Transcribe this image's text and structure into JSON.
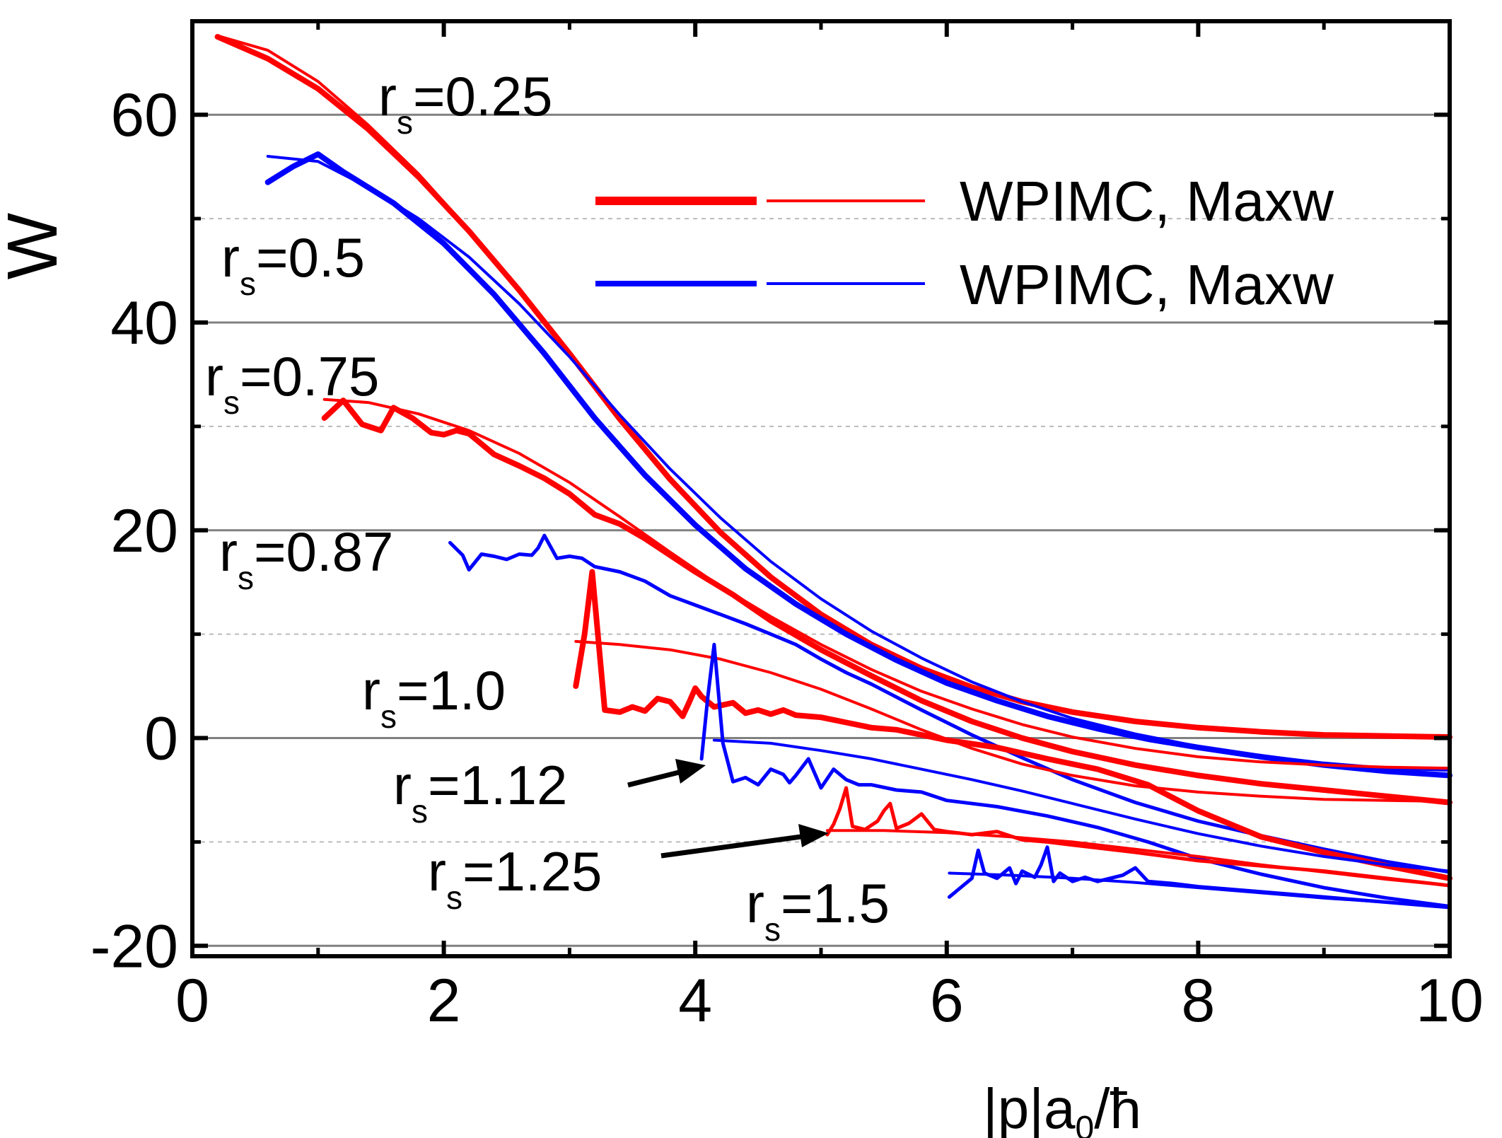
{
  "chart_data": {
    "type": "line",
    "xlabel": "|p|a",
    "xlabel_sub": "0",
    "xlabel_tail": "/ħ",
    "ylabel": "W",
    "xlim": [
      0,
      10
    ],
    "ylim": [
      -21,
      69
    ],
    "x_ticks": [
      0,
      2,
      4,
      6,
      8,
      10
    ],
    "y_ticks": [
      -20,
      0,
      20,
      40,
      60
    ],
    "y_ticks_minor": [
      -10,
      10,
      30,
      50
    ],
    "grid": true,
    "colors": {
      "red": "#ff0000",
      "blue": "#0000ff",
      "grid_major": "#808080",
      "grid_minor": "#bbbbbb",
      "arrow": "#000000"
    },
    "legend": {
      "position": "top-right",
      "entries": [
        {
          "label": "WPIMC, Maxw",
          "color": "#ff0000"
        },
        {
          "label": "WPIMC, Maxw",
          "color": "#0000ff"
        }
      ]
    },
    "annotations": [
      {
        "main": "r",
        "sub": "s",
        "tail": "=0.25"
      },
      {
        "main": "r",
        "sub": "s",
        "tail": "=0.5"
      },
      {
        "main": "r",
        "sub": "s",
        "tail": "=0.75"
      },
      {
        "main": "r",
        "sub": "s",
        "tail": "=0.87"
      },
      {
        "main": "r",
        "sub": "s",
        "tail": "=1.0"
      },
      {
        "main": "r",
        "sub": "s",
        "tail": "=1.12"
      },
      {
        "main": "r",
        "sub": "s",
        "tail": "=1.25"
      },
      {
        "main": "r",
        "sub": "s",
        "tail": "=1.5"
      }
    ],
    "series": [
      {
        "kind": "WPIMC",
        "color": "#ff0000",
        "width": 8,
        "x": [
          0.2,
          0.6,
          1.0,
          1.4,
          1.8,
          2.2,
          2.6,
          3.0,
          3.4,
          3.8,
          4.2,
          4.6,
          5.0,
          5.4,
          5.8,
          6.2,
          6.6,
          7.0,
          7.5,
          8.0,
          8.5,
          9.0,
          9.5,
          10.0
        ],
        "y": [
          67.5,
          65.4,
          62.5,
          58.6,
          54.0,
          48.8,
          43.1,
          37.0,
          30.7,
          24.9,
          19.8,
          15.5,
          11.9,
          9.0,
          6.7,
          4.9,
          3.5,
          2.5,
          1.6,
          1.0,
          0.6,
          0.3,
          0.2,
          0.1
        ]
      },
      {
        "kind": "Maxw",
        "color": "#ff0000",
        "width": 4,
        "x": [
          0.2,
          0.6,
          1.0,
          1.4,
          1.8,
          2.2,
          2.6,
          3.0,
          3.4,
          3.8,
          4.2,
          4.6,
          5.0,
          5.4,
          5.8,
          6.2,
          6.6,
          7.0,
          7.5,
          8.0,
          8.5,
          9.0,
          9.5,
          10.0
        ],
        "y": [
          67.6,
          66.2,
          63.2,
          59.0,
          54.3,
          48.9,
          43.1,
          37.0,
          30.9,
          25.1,
          19.9,
          15.6,
          12.0,
          9.1,
          6.8,
          5.0,
          3.6,
          2.6,
          1.7,
          1.1,
          0.7,
          0.4,
          0.2,
          0.1
        ]
      },
      {
        "kind": "WPIMC",
        "color": "#0000ff",
        "width": 8,
        "x": [
          0.6,
          0.8,
          1.0,
          1.2,
          1.6,
          2.0,
          2.4,
          2.8,
          3.2,
          3.6,
          4.0,
          4.4,
          4.8,
          5.2,
          5.6,
          6.0,
          6.4,
          6.8,
          7.2,
          7.6,
          8.0,
          8.5,
          9.0,
          9.5,
          10.0
        ],
        "y": [
          53.5,
          55.0,
          56.2,
          54.5,
          51.5,
          47.6,
          42.7,
          37.0,
          30.8,
          25.3,
          20.5,
          16.3,
          12.9,
          10.0,
          7.5,
          5.3,
          3.6,
          2.1,
          0.9,
          -0.1,
          -0.9,
          -1.8,
          -2.6,
          -3.2,
          -3.6
        ]
      },
      {
        "kind": "Maxw",
        "color": "#0000ff",
        "width": 4,
        "x": [
          0.6,
          1.0,
          1.4,
          1.8,
          2.2,
          2.6,
          3.0,
          3.4,
          3.8,
          4.2,
          4.6,
          5.0,
          5.4,
          5.8,
          6.2,
          6.6,
          7.0,
          7.5,
          8.0,
          8.5,
          9.0,
          9.5,
          10.0
        ],
        "y": [
          56.0,
          55.5,
          53.0,
          50.0,
          46.3,
          41.8,
          36.7,
          31.1,
          25.9,
          21.2,
          17.0,
          13.4,
          10.3,
          7.7,
          5.4,
          3.5,
          1.9,
          0.4,
          -0.8,
          -1.7,
          -2.4,
          -2.9,
          -3.1
        ]
      },
      {
        "kind": "WPIMC",
        "color": "#ff0000",
        "width": 8,
        "x": [
          1.05,
          1.2,
          1.35,
          1.5,
          1.6,
          1.75,
          1.9,
          2.0,
          2.1,
          2.2,
          2.4,
          2.6,
          2.8,
          3.0,
          3.2,
          3.4,
          3.6,
          3.8,
          4.0,
          4.3,
          4.6,
          5.0,
          5.4,
          5.8,
          6.2,
          6.6,
          7.0,
          7.5,
          8.0,
          8.5,
          9.0,
          9.5,
          10.0
        ],
        "y": [
          30.8,
          32.5,
          30.2,
          29.6,
          31.8,
          30.8,
          29.4,
          29.2,
          29.6,
          29.3,
          27.3,
          26.2,
          25.0,
          23.5,
          21.5,
          20.6,
          19.2,
          17.6,
          16.0,
          13.8,
          11.3,
          8.5,
          6.0,
          3.6,
          1.6,
          0.0,
          -1.3,
          -2.6,
          -3.6,
          -4.4,
          -5.0,
          -5.6,
          -6.2
        ]
      },
      {
        "kind": "Maxw",
        "color": "#ff0000",
        "width": 4,
        "x": [
          1.05,
          1.4,
          1.8,
          2.2,
          2.6,
          3.0,
          3.4,
          3.8,
          4.2,
          4.6,
          5.0,
          5.4,
          5.8,
          6.2,
          6.6,
          7.0,
          7.5,
          8.0,
          8.5,
          9.0,
          9.5,
          10.0
        ],
        "y": [
          32.6,
          32.3,
          31.2,
          29.6,
          27.4,
          24.6,
          21.3,
          17.9,
          14.6,
          11.7,
          9.0,
          6.6,
          4.5,
          2.8,
          1.3,
          0.1,
          -1.0,
          -1.8,
          -2.3,
          -2.6,
          -2.8,
          -2.9
        ]
      },
      {
        "kind": "WPIMC",
        "color": "#0000ff",
        "width": 5,
        "x": [
          2.05,
          2.15,
          2.2,
          2.3,
          2.4,
          2.5,
          2.6,
          2.7,
          2.75,
          2.8,
          2.9,
          3.0,
          3.1,
          3.2,
          3.4,
          3.6,
          3.8,
          4.0,
          4.2,
          4.4,
          4.6,
          4.8,
          5.0,
          5.2,
          5.4,
          5.8,
          6.2,
          6.6,
          7.0,
          7.5,
          8.0,
          8.5,
          9.0,
          9.5,
          10.0
        ],
        "y": [
          18.8,
          17.6,
          16.2,
          17.7,
          17.5,
          17.2,
          17.7,
          17.6,
          18.3,
          19.5,
          17.3,
          17.5,
          17.3,
          16.5,
          16.0,
          15.1,
          13.7,
          12.8,
          11.9,
          11.0,
          10.0,
          9.0,
          7.6,
          6.3,
          5.2,
          2.7,
          0.3,
          -1.9,
          -4.0,
          -6.2,
          -8.0,
          -9.4,
          -10.7,
          -11.9,
          -12.9
        ]
      },
      {
        "kind": "WPIMC",
        "color": "#ff0000",
        "width": 8,
        "x": [
          3.05,
          3.12,
          3.18,
          3.28,
          3.4,
          3.5,
          3.6,
          3.7,
          3.8,
          3.9,
          3.95,
          4.0,
          4.05,
          4.15,
          4.3,
          4.4,
          4.5,
          4.6,
          4.7,
          4.8,
          5.0,
          5.2,
          5.4,
          5.6,
          5.8,
          6.0,
          6.4,
          6.8,
          7.2,
          7.6,
          8.0,
          8.5,
          9.0,
          9.5,
          10.0
        ],
        "y": [
          5.0,
          10.0,
          16.0,
          2.7,
          2.5,
          3.0,
          2.6,
          3.8,
          3.5,
          2.1,
          3.4,
          4.8,
          4.0,
          3.0,
          3.4,
          2.4,
          2.7,
          2.3,
          2.7,
          2.2,
          2.0,
          1.5,
          1.0,
          0.8,
          0.3,
          -0.2,
          -0.9,
          -2.0,
          -3.0,
          -4.5,
          -7.0,
          -9.5,
          -11.0,
          -12.3,
          -13.5
        ]
      },
      {
        "kind": "Maxw",
        "color": "#ff0000",
        "width": 4,
        "x": [
          3.05,
          3.4,
          3.8,
          4.2,
          4.6,
          5.0,
          5.4,
          5.8,
          6.2,
          6.6,
          7.0,
          7.5,
          8.0,
          8.5,
          9.0,
          9.5,
          10.0
        ],
        "y": [
          9.3,
          9.0,
          8.5,
          7.6,
          6.3,
          4.7,
          2.8,
          0.8,
          -1.0,
          -2.5,
          -3.6,
          -4.6,
          -5.2,
          -5.6,
          -5.9,
          -6.0,
          -6.1
        ]
      },
      {
        "kind": "WPIMC",
        "color": "#0000ff",
        "width": 5,
        "x": [
          4.05,
          4.1,
          4.15,
          4.22,
          4.3,
          4.4,
          4.5,
          4.6,
          4.7,
          4.75,
          4.8,
          4.9,
          5.0,
          5.1,
          5.2,
          5.3,
          5.4,
          5.6,
          5.8,
          6.0,
          6.4,
          6.8,
          7.2,
          7.6,
          8.0,
          8.5,
          9.0,
          9.5,
          10.0
        ],
        "y": [
          -2.0,
          4.0,
          9.0,
          -0.5,
          -4.2,
          -3.8,
          -4.5,
          -3.0,
          -3.5,
          -4.3,
          -3.6,
          -2.0,
          -4.8,
          -3.0,
          -4.0,
          -4.5,
          -4.5,
          -5.0,
          -5.2,
          -6.0,
          -6.6,
          -7.5,
          -8.6,
          -10.0,
          -11.6,
          -13.1,
          -14.4,
          -15.4,
          -16.2
        ]
      },
      {
        "kind": "Maxw",
        "color": "#0000ff",
        "width": 4,
        "x": [
          4.15,
          4.6,
          5.0,
          5.4,
          5.8,
          6.2,
          6.6,
          7.0,
          7.5,
          8.0,
          8.5,
          9.0,
          9.5,
          10.0
        ],
        "y": [
          -0.2,
          -0.5,
          -1.2,
          -2.0,
          -3.0,
          -4.0,
          -5.1,
          -6.3,
          -7.8,
          -9.2,
          -10.4,
          -11.4,
          -12.2,
          -12.8
        ]
      },
      {
        "kind": "WPIMC",
        "color": "#ff0000",
        "width": 5,
        "x": [
          5.05,
          5.1,
          5.15,
          5.2,
          5.25,
          5.35,
          5.45,
          5.5,
          5.55,
          5.6,
          5.7,
          5.8,
          5.9,
          6.0,
          6.2,
          6.4,
          6.6,
          6.8,
          7.0,
          7.5,
          8.0,
          8.5,
          9.0,
          9.5,
          10.0
        ],
        "y": [
          -9.3,
          -8.3,
          -6.8,
          -4.8,
          -8.5,
          -8.8,
          -8.0,
          -7.0,
          -6.3,
          -8.7,
          -8.2,
          -7.3,
          -8.8,
          -9.0,
          -9.3,
          -9.0,
          -9.8,
          -10.0,
          -10.3,
          -11.0,
          -11.8,
          -12.3,
          -12.8,
          -13.5,
          -14.2
        ]
      },
      {
        "kind": "Maxw",
        "color": "#ff0000",
        "width": 4,
        "x": [
          5.05,
          5.5,
          6.0,
          6.5,
          7.0,
          7.5,
          8.0,
          8.5,
          9.0,
          9.5,
          10.0
        ],
        "y": [
          -8.9,
          -8.9,
          -9.1,
          -9.5,
          -10.0,
          -10.7,
          -11.4,
          -12.2,
          -12.9,
          -13.6,
          -14.2
        ]
      },
      {
        "kind": "WPIMC",
        "color": "#0000ff",
        "width": 5,
        "x": [
          6.02,
          6.1,
          6.2,
          6.25,
          6.3,
          6.4,
          6.5,
          6.55,
          6.6,
          6.7,
          6.75,
          6.8,
          6.85,
          6.9,
          7.0,
          7.1,
          7.2,
          7.4,
          7.5,
          7.6,
          7.8,
          8.0,
          8.5,
          9.0,
          9.5,
          10.0
        ],
        "y": [
          -15.3,
          -14.5,
          -13.5,
          -10.8,
          -13.0,
          -13.5,
          -12.5,
          -14.0,
          -12.8,
          -13.4,
          -12.2,
          -10.5,
          -13.8,
          -13.0,
          -13.8,
          -13.4,
          -13.8,
          -13.2,
          -12.5,
          -13.8,
          -14.0,
          -14.3,
          -14.8,
          -15.3,
          -15.8,
          -16.3
        ]
      },
      {
        "kind": "Maxw",
        "color": "#0000ff",
        "width": 4,
        "x": [
          6.02,
          6.5,
          7.0,
          7.5,
          8.0,
          8.5,
          9.0,
          9.5,
          10.0
        ],
        "y": [
          -13.0,
          -13.2,
          -13.5,
          -13.9,
          -14.4,
          -14.9,
          -15.4,
          -15.8,
          -16.2
        ]
      }
    ]
  }
}
